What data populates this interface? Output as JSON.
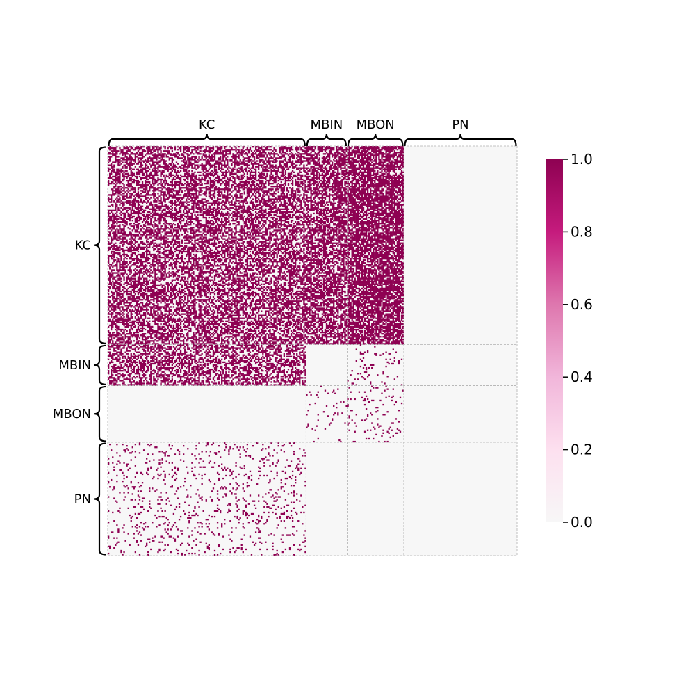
{
  "chart_data": {
    "type": "heatmap",
    "title": "",
    "groups": [
      {
        "name": "KC",
        "size": 140
      },
      {
        "name": "MBIN",
        "size": 29
      },
      {
        "name": "MBON",
        "size": 40
      },
      {
        "name": "PN",
        "size": 80
      }
    ],
    "row_labels": [
      "KC",
      "MBIN",
      "MBON",
      "PN"
    ],
    "col_labels": [
      "KC",
      "MBIN",
      "MBON",
      "PN"
    ],
    "block_density": [
      [
        0.55,
        0.62,
        0.74,
        0.0
      ],
      [
        0.5,
        0.0,
        0.05,
        0.0
      ],
      [
        0.0,
        0.04,
        0.07,
        0.0
      ],
      [
        0.08,
        0.0,
        0.0,
        0.0
      ]
    ],
    "value_scale": {
      "min": 0.0,
      "max": 1.0
    },
    "colorbar": {
      "ticks": [
        0.0,
        0.2,
        0.4,
        0.6,
        0.8,
        1.0
      ],
      "tick_labels": [
        "0.0",
        "0.2",
        "0.4",
        "0.6",
        "0.8",
        "1.0"
      ],
      "colors": [
        "#f7f7f7",
        "#fde0ef",
        "#f1b6da",
        "#de77ae",
        "#c51b7d",
        "#8e0152"
      ]
    },
    "block_separators": "dashed",
    "grid": false
  }
}
